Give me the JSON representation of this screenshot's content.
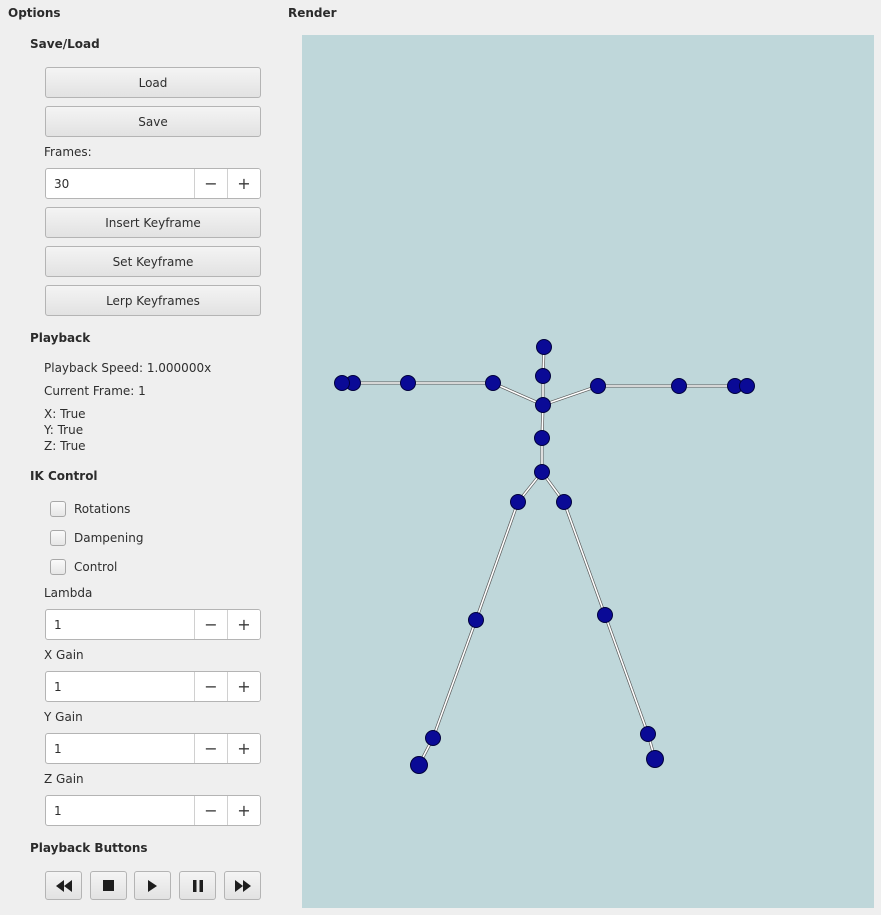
{
  "options_title": "Options",
  "render_title": "Render",
  "save_load": {
    "title": "Save/Load",
    "load_label": "Load",
    "save_label": "Save",
    "frames_label": "Frames:",
    "frames_value": "30",
    "insert_keyframe_label": "Insert Keyframe",
    "set_keyframe_label": "Set Keyframe",
    "lerp_keyframes_label": "Lerp Keyframes"
  },
  "playback": {
    "title": "Playback",
    "speed_text": "Playback Speed: 1.000000x",
    "current_frame_text": "Current Frame: 1",
    "x_text": "X: True",
    "y_text": "Y: True",
    "z_text": "Z: True"
  },
  "ik_control": {
    "title": "IK Control",
    "rotations_label": "Rotations",
    "rotations_checked": false,
    "dampening_label": "Dampening",
    "dampening_checked": false,
    "control_label": "Control",
    "control_checked": false,
    "lambda_label": "Lambda",
    "lambda_value": "1",
    "x_gain_label": "X Gain",
    "x_gain_value": "1",
    "y_gain_label": "Y Gain",
    "y_gain_value": "1",
    "z_gain_label": "Z Gain",
    "z_gain_value": "1"
  },
  "playback_buttons": {
    "title": "Playback Buttons",
    "icons": [
      "rewind-icon",
      "stop-icon",
      "play-icon",
      "pause-icon",
      "fast-forward-icon"
    ]
  },
  "spin_icons": {
    "decrement": "minus-icon",
    "increment": "plus-icon"
  },
  "colors": {
    "canvas_background": "#bfd7da",
    "joint_fill": "#0a0a96",
    "joint_stroke": "#00003c",
    "bone": "#ffffff"
  }
}
